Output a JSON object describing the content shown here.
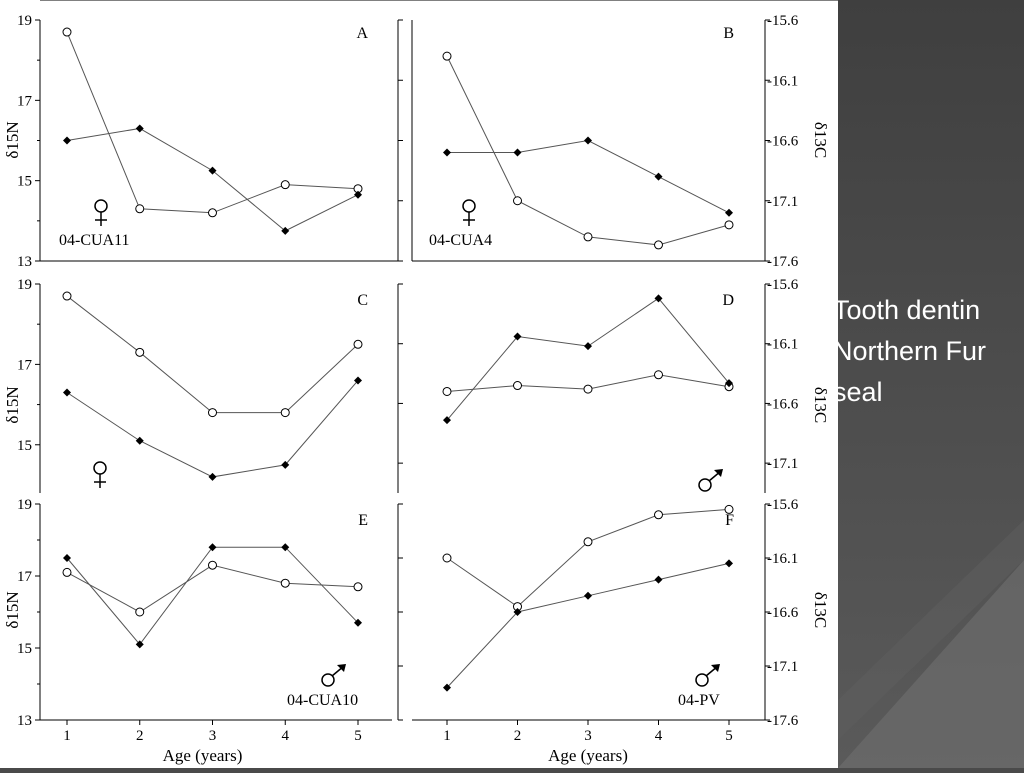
{
  "slide": {
    "caption_lines": [
      "Tooth dentin",
      "Northern Fur",
      "seal"
    ],
    "background_color": "#4a4a4a",
    "caption_color": "#ffffff"
  },
  "figure": {
    "x_axis_label": "Age (years)",
    "left_axis_label": "δ15N",
    "right_axis_label": "δ13C",
    "x_ticks": [
      "1",
      "2",
      "3",
      "4",
      "5"
    ],
    "left_ticks_top": [
      "19",
      "17",
      "15",
      "13"
    ],
    "left_ticks_mid": [
      "19",
      "17",
      "15"
    ],
    "left_ticks_bottom": [
      "19",
      "17",
      "15",
      "13"
    ],
    "right_ticks_top": [
      "-15.6",
      "-16.1",
      "-16.6",
      "-17.1",
      "-17.6"
    ],
    "right_ticks_mid": [
      "-15.6",
      "-16.1",
      "-16.6",
      "-17.1"
    ],
    "right_ticks_bottom": [
      "-15.6",
      "-16.1",
      "-16.6",
      "-17.1",
      "-17.6"
    ]
  },
  "chart_data": [
    {
      "type": "line",
      "panel": "A",
      "specimen": "04-CUA11",
      "sex": "female",
      "x": [
        1,
        2,
        3,
        4,
        5
      ],
      "series": [
        {
          "marker": "open-circle",
          "axis": "left",
          "values": [
            18.7,
            14.3,
            14.2,
            14.9,
            14.8
          ]
        },
        {
          "marker": "filled-diamond",
          "axis": "right",
          "values": [
            -16.6,
            -16.5,
            -16.85,
            -17.35,
            -17.05
          ]
        }
      ],
      "ylim_left": [
        13,
        19
      ],
      "ylim_right": [
        -17.6,
        -15.6
      ]
    },
    {
      "type": "line",
      "panel": "B",
      "specimen": "04-CUA4",
      "sex": "female",
      "x": [
        1,
        2,
        3,
        4,
        5
      ],
      "series": [
        {
          "marker": "open-circle",
          "axis": "left",
          "values": [
            18.1,
            14.5,
            13.6,
            13.4,
            13.9
          ]
        },
        {
          "marker": "filled-diamond",
          "axis": "right",
          "values": [
            -16.7,
            -16.7,
            -16.6,
            -16.9,
            -17.2
          ]
        }
      ],
      "ylim_left": [
        13,
        19
      ],
      "ylim_right": [
        -17.6,
        -15.6
      ]
    },
    {
      "type": "line",
      "panel": "C",
      "specimen": "",
      "sex": "female",
      "x": [
        1,
        2,
        3,
        4,
        5
      ],
      "series": [
        {
          "marker": "open-circle",
          "axis": "left",
          "values": [
            18.7,
            17.3,
            15.8,
            15.8,
            17.5
          ]
        },
        {
          "marker": "filled-diamond",
          "axis": "left",
          "values": [
            16.3,
            15.1,
            14.2,
            14.5,
            16.6
          ]
        }
      ],
      "ylim_left": [
        13.8,
        19
      ],
      "ylim_right": [
        -17.35,
        -15.6
      ]
    },
    {
      "type": "line",
      "panel": "D",
      "specimen": "",
      "sex": "male",
      "x": [
        1,
        2,
        3,
        4,
        5
      ],
      "series": [
        {
          "marker": "open-circle",
          "axis": "right",
          "values": [
            -16.5,
            -16.45,
            -16.48,
            -16.36,
            -16.46
          ]
        },
        {
          "marker": "filled-diamond",
          "axis": "right",
          "values": [
            -16.74,
            -16.04,
            -16.12,
            -15.72,
            -16.43
          ]
        }
      ],
      "ylim_left": [
        13.8,
        19
      ],
      "ylim_right": [
        -17.35,
        -15.6
      ]
    },
    {
      "type": "line",
      "panel": "E",
      "specimen": "04-CUA10",
      "sex": "male",
      "x": [
        1,
        2,
        3,
        4,
        5
      ],
      "series": [
        {
          "marker": "open-circle",
          "axis": "left",
          "values": [
            17.1,
            16.0,
            17.3,
            16.8,
            16.7
          ]
        },
        {
          "marker": "filled-diamond",
          "axis": "left",
          "values": [
            17.5,
            15.1,
            17.8,
            17.8,
            15.7
          ]
        }
      ],
      "ylim_left": [
        13,
        19
      ],
      "ylim_right": [
        -17.6,
        -15.6
      ]
    },
    {
      "type": "line",
      "panel": "F",
      "specimen": "04-PV",
      "sex": "male",
      "x": [
        1,
        2,
        3,
        4,
        5
      ],
      "series": [
        {
          "marker": "open-circle",
          "axis": "right",
          "values": [
            -16.1,
            -16.55,
            -15.95,
            -15.7,
            -15.65
          ]
        },
        {
          "marker": "filled-diamond",
          "axis": "right",
          "values": [
            -17.3,
            -16.6,
            -16.45,
            -16.3,
            -16.15
          ]
        }
      ],
      "ylim_left": [
        13,
        19
      ],
      "ylim_right": [
        -17.6,
        -15.6
      ]
    }
  ]
}
